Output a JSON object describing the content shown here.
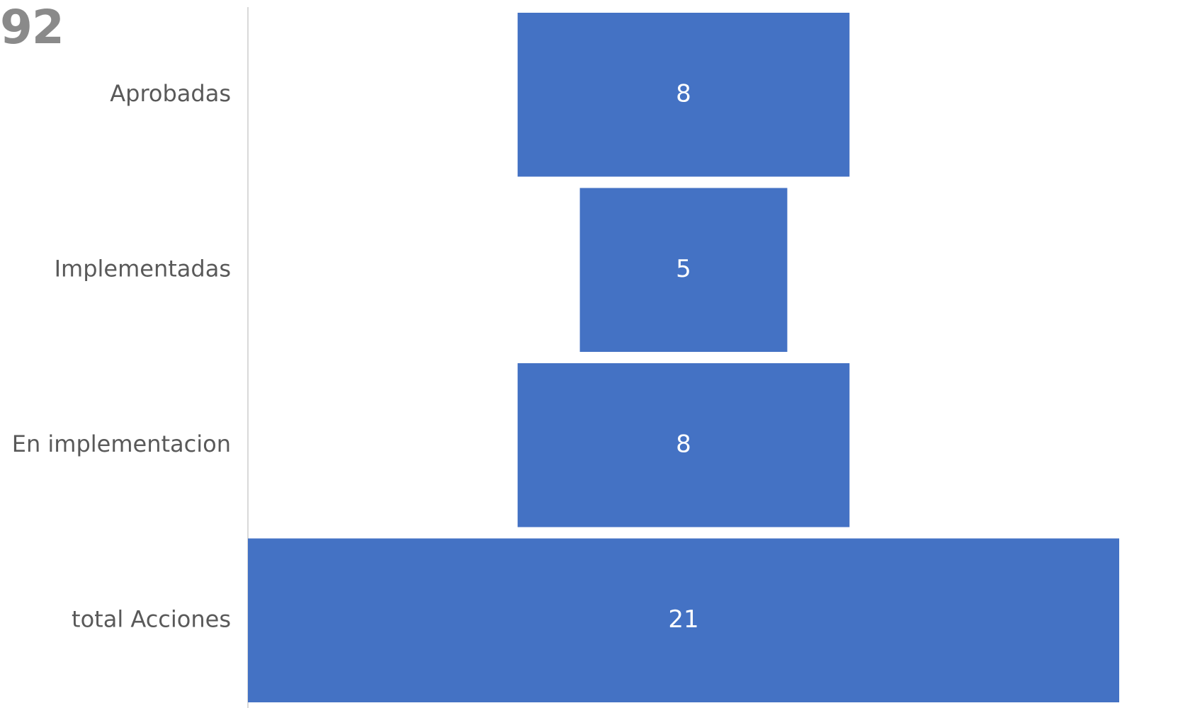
{
  "corner_text": "92",
  "chart_data": {
    "type": "bar",
    "subtype": "funnel",
    "categories": [
      "Aprobadas",
      "Implementadas",
      "En implementacion",
      "total Acciones"
    ],
    "values": [
      8,
      5,
      8,
      21
    ],
    "data_labels": [
      "8",
      "5",
      "8",
      "21"
    ],
    "title": "",
    "xlabel": "",
    "ylabel": "",
    "grid": false,
    "legend": "none",
    "colors": {
      "bar": "#4472C4",
      "axis": "#d9d9d9",
      "category_label": "#595959",
      "value_label": "#ffffff"
    }
  }
}
